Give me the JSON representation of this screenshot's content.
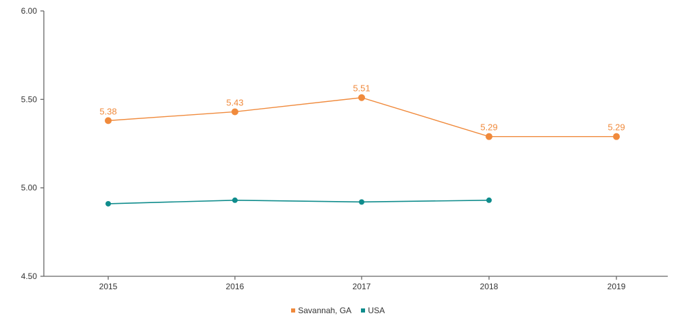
{
  "chart_data": {
    "type": "line",
    "x": [
      "2015",
      "2016",
      "2017",
      "2018",
      "2019"
    ],
    "ylim": [
      4.5,
      6.0
    ],
    "yticks": [
      "4.50",
      "5.00",
      "5.50",
      "6.00"
    ],
    "yticks_values": [
      4.5,
      5.0,
      5.5,
      6.0
    ],
    "grid": false,
    "legend_position": "bottom-center",
    "series": [
      {
        "name": "Savannah, GA",
        "color": "#f08a3c",
        "values": [
          5.38,
          5.43,
          5.51,
          5.29,
          5.29
        ],
        "labels": [
          "5.38",
          "5.43",
          "5.51",
          "5.29",
          "5.29"
        ]
      },
      {
        "name": "USA",
        "color": "#0f8c8c",
        "values": [
          4.91,
          4.93,
          4.92,
          4.93,
          null
        ],
        "labels": [
          "",
          "",
          "",
          "",
          ""
        ]
      }
    ]
  }
}
